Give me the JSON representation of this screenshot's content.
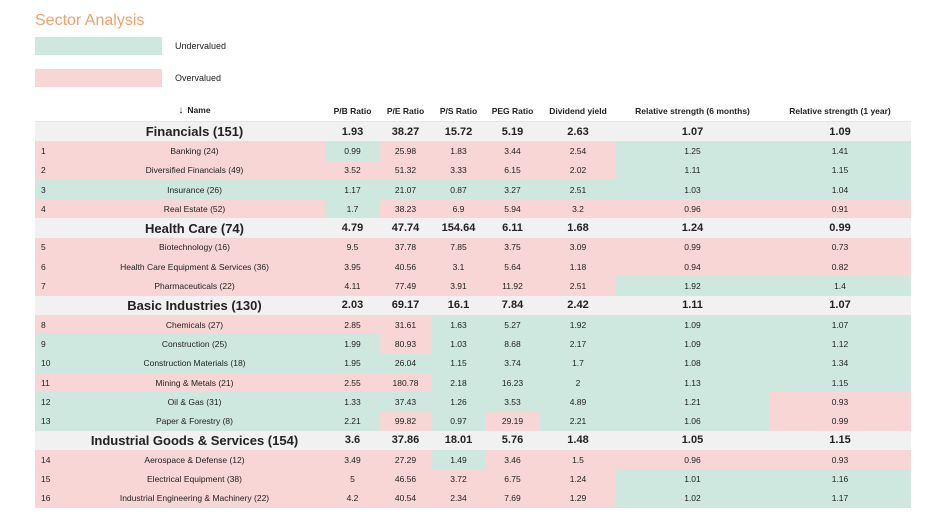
{
  "title": "Sector Analysis",
  "legend": [
    {
      "label": "Undervalued",
      "color": "#cfe8df"
    },
    {
      "label": "Overvalued",
      "color": "#f9d6d6"
    }
  ],
  "columns": [
    "Name",
    "P/B Ratio",
    "P/E Ratio",
    "P/S Ratio",
    "PEG Ratio",
    "Dividend yield",
    "Relative strength (6 months)",
    "Relative strength (1 year)"
  ],
  "sort_icon": "↓",
  "rows": [
    {
      "type": "sector",
      "name": "Financials (151)",
      "values": [
        "1.93",
        "38.27",
        "15.72",
        "5.19",
        "2.63",
        "1.07",
        "1.09"
      ]
    },
    {
      "type": "sub",
      "idx": "1",
      "name": "Banking (24)",
      "values": [
        "0.99",
        "25.98",
        "1.83",
        "3.44",
        "2.54",
        "1.25",
        "1.41"
      ],
      "colors": [
        "g",
        "r",
        "r",
        "r",
        "r",
        "g",
        "g"
      ],
      "name_color": "r"
    },
    {
      "type": "sub",
      "idx": "2",
      "name": "Diversified Financials (49)",
      "values": [
        "3.52",
        "51.32",
        "3.33",
        "6.15",
        "2.02",
        "1.11",
        "1.15"
      ],
      "colors": [
        "r",
        "r",
        "r",
        "r",
        "r",
        "g",
        "g"
      ],
      "name_color": "r"
    },
    {
      "type": "sub",
      "idx": "3",
      "name": "Insurance (26)",
      "values": [
        "1.17",
        "21.07",
        "0.87",
        "3.27",
        "2.51",
        "1.03",
        "1.04"
      ],
      "colors": [
        "g",
        "g",
        "g",
        "g",
        "g",
        "g",
        "g"
      ],
      "name_color": "g"
    },
    {
      "type": "sub",
      "idx": "4",
      "name": "Real Estate (52)",
      "values": [
        "1.7",
        "38.23",
        "6.9",
        "5.94",
        "3.2",
        "0.96",
        "0.91"
      ],
      "colors": [
        "g",
        "r",
        "r",
        "r",
        "r",
        "r",
        "r"
      ],
      "name_color": "r"
    },
    {
      "type": "sector",
      "name": "Health Care (74)",
      "values": [
        "4.79",
        "47.74",
        "154.64",
        "6.11",
        "1.68",
        "1.24",
        "0.99"
      ]
    },
    {
      "type": "sub",
      "idx": "5",
      "name": "Biotechnology (16)",
      "values": [
        "9.5",
        "37.78",
        "7.85",
        "3.75",
        "3.09",
        "0.99",
        "0.73"
      ],
      "colors": [
        "r",
        "r",
        "r",
        "r",
        "r",
        "r",
        "r"
      ],
      "name_color": "r"
    },
    {
      "type": "sub",
      "idx": "6",
      "name": "Health Care Equipment & Services (36)",
      "values": [
        "3.95",
        "40.56",
        "3.1",
        "5.64",
        "1.18",
        "0.94",
        "0.82"
      ],
      "colors": [
        "r",
        "r",
        "r",
        "r",
        "r",
        "r",
        "r"
      ],
      "name_color": "r"
    },
    {
      "type": "sub",
      "idx": "7",
      "name": "Pharmaceuticals (22)",
      "values": [
        "4.11",
        "77.49",
        "3.91",
        "11.92",
        "2.51",
        "1.92",
        "1.4"
      ],
      "colors": [
        "r",
        "r",
        "r",
        "r",
        "r",
        "g",
        "g"
      ],
      "name_color": "r"
    },
    {
      "type": "sector",
      "name": "Basic Industries (130)",
      "values": [
        "2.03",
        "69.17",
        "16.1",
        "7.84",
        "2.42",
        "1.11",
        "1.07"
      ]
    },
    {
      "type": "sub",
      "idx": "8",
      "name": "Chemicals (27)",
      "values": [
        "2.85",
        "31.61",
        "1.63",
        "5.27",
        "1.92",
        "1.09",
        "1.07"
      ],
      "colors": [
        "r",
        "r",
        "g",
        "g",
        "g",
        "g",
        "g"
      ],
      "name_color": "r"
    },
    {
      "type": "sub",
      "idx": "9",
      "name": "Construction (25)",
      "values": [
        "1.99",
        "80.93",
        "1.03",
        "8.68",
        "2.17",
        "1.09",
        "1.12"
      ],
      "colors": [
        "g",
        "r",
        "g",
        "g",
        "g",
        "g",
        "g"
      ],
      "name_color": "g"
    },
    {
      "type": "sub",
      "idx": "10",
      "name": "Construction Materials (18)",
      "values": [
        "1.95",
        "26.04",
        "1.15",
        "3.74",
        "1.7",
        "1.08",
        "1.34"
      ],
      "colors": [
        "g",
        "g",
        "g",
        "g",
        "g",
        "g",
        "g"
      ],
      "name_color": "g"
    },
    {
      "type": "sub",
      "idx": "11",
      "name": "Mining & Metals (21)",
      "values": [
        "2.55",
        "180.78",
        "2.18",
        "16.23",
        "2",
        "1.13",
        "1.15"
      ],
      "colors": [
        "r",
        "r",
        "g",
        "g",
        "g",
        "g",
        "g"
      ],
      "name_color": "r"
    },
    {
      "type": "sub",
      "idx": "12",
      "name": "Oil & Gas (31)",
      "values": [
        "1.33",
        "37.43",
        "1.26",
        "3.53",
        "4.89",
        "1.21",
        "0.93"
      ],
      "colors": [
        "g",
        "g",
        "g",
        "g",
        "g",
        "g",
        "r"
      ],
      "name_color": "g"
    },
    {
      "type": "sub",
      "idx": "13",
      "name": "Paper & Forestry (8)",
      "values": [
        "2.21",
        "99.82",
        "0.97",
        "29.19",
        "2.21",
        "1.06",
        "0.99"
      ],
      "colors": [
        "g",
        "r",
        "g",
        "r",
        "g",
        "g",
        "r"
      ],
      "name_color": "g"
    },
    {
      "type": "sector",
      "name": "Industrial Goods & Services (154)",
      "values": [
        "3.6",
        "37.86",
        "18.01",
        "5.76",
        "1.48",
        "1.05",
        "1.15"
      ]
    },
    {
      "type": "sub",
      "idx": "14",
      "name": "Aerospace & Defense (12)",
      "values": [
        "3.49",
        "27.29",
        "1.49",
        "3.46",
        "1.5",
        "0.96",
        "0.93"
      ],
      "colors": [
        "r",
        "r",
        "g",
        "r",
        "r",
        "r",
        "r"
      ],
      "name_color": "r"
    },
    {
      "type": "sub",
      "idx": "15",
      "name": "Electrical Equipment (38)",
      "values": [
        "5",
        "46.56",
        "3.72",
        "6.75",
        "1.24",
        "1.01",
        "1.16"
      ],
      "colors": [
        "r",
        "r",
        "r",
        "r",
        "r",
        "g",
        "g"
      ],
      "name_color": "r"
    },
    {
      "type": "sub",
      "idx": "16",
      "name": "Industrial Engineering & Machinery (22)",
      "values": [
        "4.2",
        "40.54",
        "2.34",
        "7.69",
        "1.29",
        "1.02",
        "1.17"
      ],
      "colors": [
        "r",
        "r",
        "r",
        "r",
        "r",
        "g",
        "g"
      ],
      "name_color": "r"
    }
  ]
}
